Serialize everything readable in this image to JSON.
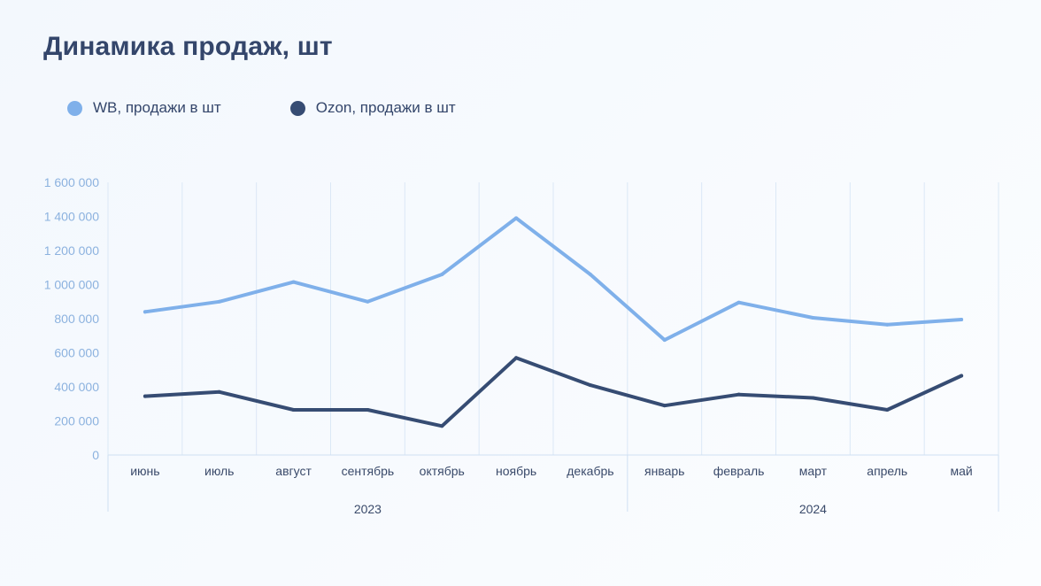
{
  "title": "Динамика продаж, шт",
  "legend": [
    {
      "label": "WB, продажи в шт",
      "color": "#7fb0ea"
    },
    {
      "label": "Ozon, продажи в шт",
      "color": "#364c73"
    }
  ],
  "chart_data": {
    "type": "line",
    "categories": [
      "июнь",
      "июль",
      "август",
      "сентябрь",
      "октябрь",
      "ноябрь",
      "декабрь",
      "январь",
      "февраль",
      "март",
      "апрель",
      "май"
    ],
    "years": [
      {
        "label": "2023",
        "from": 0,
        "to": 6
      },
      {
        "label": "2024",
        "from": 7,
        "to": 11
      }
    ],
    "ylim": [
      0,
      1600000
    ],
    "yticks": [
      {
        "value": 0,
        "label": "0"
      },
      {
        "value": 200000,
        "label": "200 000"
      },
      {
        "value": 400000,
        "label": "400 000"
      },
      {
        "value": 600000,
        "label": "600 000"
      },
      {
        "value": 800000,
        "label": "800 000"
      },
      {
        "value": 1000000,
        "label": "1 000 000"
      },
      {
        "value": 1200000,
        "label": "1 200 000"
      },
      {
        "value": 1400000,
        "label": "1 400 000"
      },
      {
        "value": 1600000,
        "label": "1 600 000"
      }
    ],
    "grid": "vertical",
    "legend_position": "top-left",
    "series": [
      {
        "name": "WB, продажи в шт",
        "color": "#7fb0ea",
        "values": [
          840000,
          900000,
          1015000,
          900000,
          1060000,
          1390000,
          1060000,
          675000,
          895000,
          805000,
          765000,
          795000
        ]
      },
      {
        "name": "Ozon, продажи в шт",
        "color": "#364c73",
        "values": [
          345000,
          370000,
          265000,
          265000,
          170000,
          570000,
          410000,
          290000,
          355000,
          335000,
          265000,
          465000
        ]
      }
    ]
  }
}
